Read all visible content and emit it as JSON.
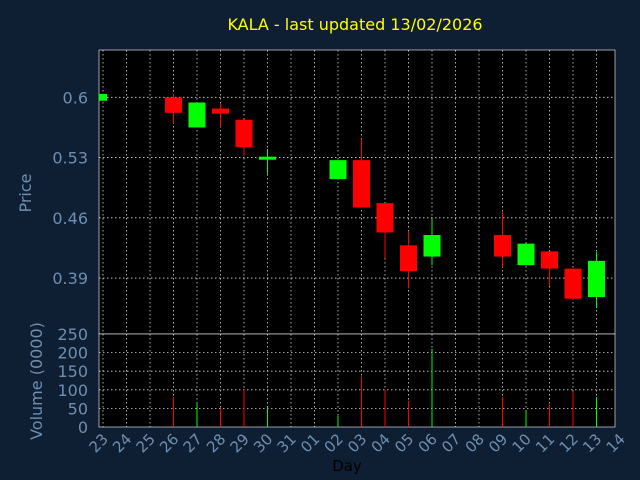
{
  "chart_data": {
    "type": "candlestick",
    "title": "KALA - last updated 13/02/2026",
    "xlabel": "Day",
    "price_panel": {
      "ylabel": "Price",
      "ylim": [
        0.325,
        0.655
      ],
      "yticks": [
        "0.6",
        "0.53",
        "0.46",
        "0.39"
      ],
      "ytick_values": [
        0.6,
        0.53,
        0.46,
        0.39
      ]
    },
    "volume_panel": {
      "ylabel": "Volume (0000)",
      "ylim": [
        0,
        250
      ],
      "yticks": [
        "250",
        "200",
        "150",
        "100",
        "50",
        "0"
      ],
      "ytick_values": [
        250,
        200,
        150,
        100,
        50,
        0
      ]
    },
    "categories": [
      "23",
      "24",
      "25",
      "26",
      "27",
      "28",
      "29",
      "30",
      "31",
      "01",
      "02",
      "03",
      "04",
      "05",
      "06",
      "07",
      "08",
      "09",
      "10",
      "11",
      "12",
      "13",
      "14"
    ],
    "candles": [
      {
        "i": 0,
        "open": 0.596,
        "close": 0.604,
        "high": 0.604,
        "low": 0.596,
        "volume": 0
      },
      {
        "i": 3,
        "open": 0.6,
        "close": 0.582,
        "high": 0.604,
        "low": 0.57,
        "volume": 80
      },
      {
        "i": 4,
        "open": 0.565,
        "close": 0.594,
        "high": 0.594,
        "low": 0.565,
        "volume": 65
      },
      {
        "i": 5,
        "open": 0.587,
        "close": 0.581,
        "high": 0.592,
        "low": 0.566,
        "volume": 50
      },
      {
        "i": 6,
        "open": 0.574,
        "close": 0.542,
        "high": 0.574,
        "low": 0.532,
        "volume": 100
      },
      {
        "i": 7,
        "open": 0.528,
        "close": 0.531,
        "high": 0.54,
        "low": 0.511,
        "volume": 55
      },
      {
        "i": 10,
        "open": 0.505,
        "close": 0.527,
        "high": 0.527,
        "low": 0.505,
        "volume": 30
      },
      {
        "i": 11,
        "open": 0.527,
        "close": 0.472,
        "high": 0.552,
        "low": 0.472,
        "volume": 135
      },
      {
        "i": 12,
        "open": 0.477,
        "close": 0.443,
        "high": 0.477,
        "low": 0.413,
        "volume": 100
      },
      {
        "i": 13,
        "open": 0.428,
        "close": 0.398,
        "high": 0.445,
        "low": 0.378,
        "volume": 70
      },
      {
        "i": 14,
        "open": 0.415,
        "close": 0.44,
        "high": 0.458,
        "low": 0.405,
        "volume": 210
      },
      {
        "i": 17,
        "open": 0.44,
        "close": 0.415,
        "high": 0.466,
        "low": 0.403,
        "volume": 80
      },
      {
        "i": 18,
        "open": 0.405,
        "close": 0.43,
        "high": 0.43,
        "low": 0.405,
        "volume": 45
      },
      {
        "i": 19,
        "open": 0.421,
        "close": 0.401,
        "high": 0.421,
        "low": 0.381,
        "volume": 60
      },
      {
        "i": 20,
        "open": 0.401,
        "close": 0.366,
        "high": 0.401,
        "low": 0.366,
        "volume": 95
      },
      {
        "i": 21,
        "open": 0.368,
        "close": 0.41,
        "high": 0.42,
        "low": 0.355,
        "volume": 80
      }
    ],
    "colors": {
      "background": "#0f1f33",
      "plot_background": "#000000",
      "up": "#00ff00",
      "down": "#ff0000",
      "axis_text": "#6f8fb0",
      "title": "#ffff00",
      "grid": "#ffffff",
      "xlabel": "#000000"
    },
    "grid": true
  }
}
